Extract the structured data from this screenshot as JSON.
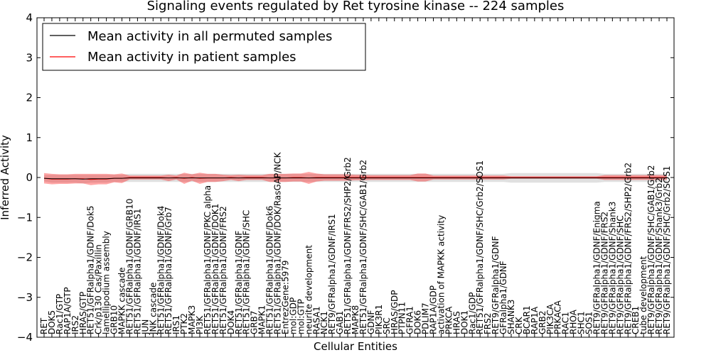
{
  "chart_data": {
    "type": "line",
    "title": "Signaling events regulated by Ret tyrosine kinase -- 224 samples",
    "xlabel": "Cellular Entities",
    "ylabel": "Inferred Activity",
    "ylim": [
      -4,
      4
    ],
    "yticks": [
      4,
      3,
      2,
      1,
      0,
      -1,
      -2,
      -3,
      -4
    ],
    "grid": false,
    "legend_position": "top-left",
    "categories": [
      "RET",
      "DOK5",
      "Rac1/GTP",
      "RAP1A/GTP",
      "IRS2",
      "HRAS/GTP",
      "RET51/GFRalpha1/GDNF/Dok5",
      "Crk/p130 Cas/Paxillin",
      "lamellipodium assembly",
      "GRB10",
      "MAPKK cascade",
      "RET51/GFRalpha1/GDNF/GRB10",
      "RET51/GFRalpha1/GDNF/IRS1",
      "JUN",
      "JNK cascade",
      "RET51/GFRalpha1/GDNF/Dok4",
      "RET51/GFRalpha1/GDNF/Grb7",
      "IRS1",
      "PTK2",
      "MAPK3",
      "PI3K",
      "RET51/GFRalpha1/GDNF/PKC alpha",
      "RET51/GFRalpha1/GDNF/DOK1",
      "RET51/GFRalpha1/GDNF/FRS2",
      "DOK4",
      "RET51/GFRalpha1/GDNF",
      "RET51/GFRalpha1/GDNF/SHC",
      "GRB7",
      "MAPK1",
      "RET51/GFRalpha1/GDNF/Dok6",
      "RET51/GFRalpha1/GDNF/DOK/RasGAP/NCK",
      "EntrezGene:5979",
      "mol:GDP",
      "mol:GTP",
      "neurite development",
      "RASA1",
      "NCK1",
      "RET9/GFRalpha1/GDNF/IRS1",
      "GAB1",
      "RET51/GFRalpha1/GDNF/FRS2/SHP2/Grb2",
      "MAPK8",
      "RET51/GFRalpha1/GDNF/SHC/GAB1/Grb2",
      "GDNF",
      "PIK3R1",
      "SRC",
      "HRAS/GDP",
      "PTPN11",
      "GFRA1",
      "DOK6",
      "PDLIM7",
      "RAP1A/GDP",
      "activation of MAPKK activity",
      "PRKCA",
      "HRAS",
      "DOK1",
      "Rac1/GDP",
      "RET51/GFRalpha1/GDNF/SHC/Grb2/SOS1",
      "FRS2",
      "RET9/GFRalpha1/GDNF",
      "GFRalpha1/GDNF",
      "SHANK3",
      "CRK",
      "BCAR1",
      "RAP1A",
      "GRB2",
      "PIK3CA",
      "PRKACA",
      "RAC1",
      "RHOA",
      "SHC1",
      "SOS1",
      "RET9/GFRalpha1/GDNF/Enigma",
      "RET9/GFRalpha1/GDNF/FRS2",
      "RET9/GFRalpha1/GDNF/Shank3",
      "RET9/GFRalpha1/GDNF/SHC",
      "RET9/GFRalpha1/GDNF/FRS2/SHP2/Grb2",
      "CREB1",
      "tube development",
      "RET9/GFRalpha1/GDNF/SHC/GAB1/Grb2",
      "RET9/GFRalpha1/GDNF/Shank3/Grb2",
      "RET9/GFRalpha1/GDNF/SHC/Grb2/SOS1"
    ],
    "series": [
      {
        "name": "Mean activity in all permuted samples",
        "color": "#000000",
        "values": [
          -0.02,
          -0.03,
          -0.03,
          -0.03,
          -0.03,
          -0.04,
          -0.03,
          -0.03,
          -0.03,
          -0.02,
          -0.02,
          -0.01,
          -0.01,
          -0.01,
          -0.01,
          -0.01,
          -0.01,
          -0.01,
          -0.01,
          -0.01,
          -0.01,
          -0.01,
          -0.01,
          -0.01,
          -0.01,
          -0.01,
          -0.01,
          -0.01,
          -0.01,
          -0.01,
          -0.01,
          -0.01,
          -0.01,
          -0.01,
          -0.01,
          -0.01,
          -0.01,
          -0.01,
          -0.01,
          -0.01,
          -0.01,
          -0.01,
          -0.01,
          -0.01,
          -0.01,
          -0.01,
          -0.01,
          -0.01,
          -0.01,
          -0.01,
          -0.01,
          -0.01,
          -0.01,
          -0.01,
          -0.01,
          -0.01,
          -0.01,
          -0.01,
          -0.01,
          -0.01,
          -0.01,
          -0.01,
          -0.01,
          -0.01,
          -0.01,
          -0.01,
          -0.01,
          -0.01,
          -0.01,
          -0.01,
          -0.01,
          -0.01,
          -0.01,
          -0.01,
          -0.01,
          -0.01,
          -0.01,
          -0.01,
          -0.01,
          -0.01,
          -0.01
        ],
        "band": [
          0.08,
          0.1,
          0.1,
          0.1,
          0.1,
          0.11,
          0.1,
          0.1,
          0.1,
          0.09,
          0.09,
          0.1,
          0.1,
          0.1,
          0.1,
          0.1,
          0.1,
          0.1,
          0.1,
          0.1,
          0.1,
          0.1,
          0.1,
          0.1,
          0.1,
          0.1,
          0.1,
          0.1,
          0.1,
          0.1,
          0.1,
          0.1,
          0.1,
          0.1,
          0.1,
          0.1,
          0.1,
          0.1,
          0.1,
          0.1,
          0.1,
          0.1,
          0.1,
          0.1,
          0.1,
          0.1,
          0.1,
          0.1,
          0.1,
          0.1,
          0.1,
          0.1,
          0.1,
          0.1,
          0.1,
          0.1,
          0.1,
          0.1,
          0.1,
          0.1,
          0.12,
          0.12,
          0.12,
          0.12,
          0.12,
          0.12,
          0.12,
          0.12,
          0.12,
          0.12,
          0.12,
          0.12,
          0.1,
          0.1,
          0.1,
          0.1,
          0.1,
          0.1,
          0.1,
          0.1,
          0.1
        ]
      },
      {
        "name": "Mean activity in patient samples",
        "color": "#ff0000",
        "values": [
          -0.02,
          -0.04,
          -0.04,
          -0.04,
          -0.03,
          -0.03,
          -0.05,
          -0.04,
          -0.04,
          -0.02,
          -0.02,
          0.0,
          0.0,
          0.0,
          0.0,
          0.0,
          -0.01,
          0.0,
          -0.02,
          0.0,
          -0.02,
          -0.01,
          -0.01,
          -0.01,
          0.0,
          -0.01,
          0.0,
          0.0,
          0.0,
          -0.01,
          -0.01,
          -0.01,
          0.0,
          0.0,
          -0.01,
          0.0,
          0.0,
          0.0,
          0.0,
          0.0,
          0.0,
          0.0,
          0.0,
          0.0,
          0.0,
          0.0,
          0.0,
          0.0,
          0.0,
          0.0,
          0.0,
          0.0,
          0.0,
          0.0,
          0.0,
          0.0,
          0.0,
          0.0,
          0.0,
          0.0,
          0.0,
          0.0,
          0.0,
          0.0,
          0.0,
          0.0,
          0.0,
          0.0,
          0.0,
          0.0,
          0.0,
          0.0,
          0.0,
          0.0,
          0.0,
          0.0,
          0.0,
          0.0,
          0.0,
          0.0,
          0.0
        ],
        "band": [
          0.13,
          0.13,
          0.12,
          0.12,
          0.12,
          0.12,
          0.14,
          0.13,
          0.13,
          0.1,
          0.12,
          0.05,
          0.05,
          0.05,
          0.05,
          0.05,
          0.08,
          0.05,
          0.14,
          0.08,
          0.14,
          0.1,
          0.1,
          0.08,
          0.06,
          0.08,
          0.06,
          0.06,
          0.06,
          0.1,
          0.1,
          0.1,
          0.1,
          0.1,
          0.15,
          0.1,
          0.08,
          0.08,
          0.08,
          0.08,
          0.07,
          0.07,
          0.06,
          0.06,
          0.06,
          0.06,
          0.06,
          0.06,
          0.1,
          0.1,
          0.05,
          0.05,
          0.05,
          0.05,
          0.05,
          0.05,
          0.05,
          0.05,
          0.05,
          0.05,
          0.03,
          0.03,
          0.03,
          0.03,
          0.03,
          0.03,
          0.03,
          0.03,
          0.03,
          0.03,
          0.03,
          0.03,
          0.06,
          0.06,
          0.06,
          0.06,
          0.06,
          0.06,
          0.06,
          0.06,
          0.06
        ]
      }
    ]
  }
}
